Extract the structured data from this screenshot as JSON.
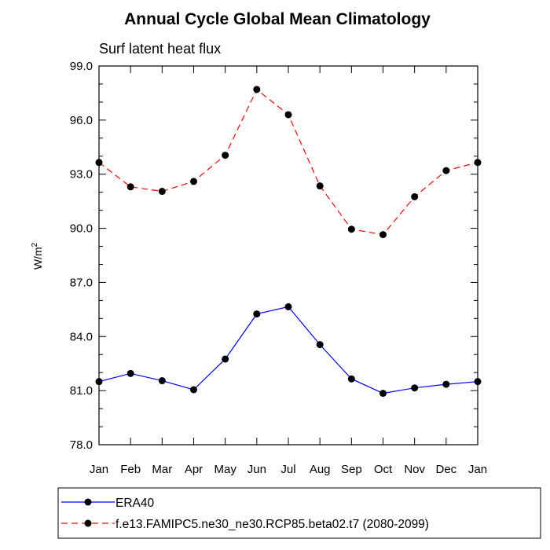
{
  "chart_data": {
    "type": "line",
    "title": "Annual Cycle Global Mean Climatology",
    "subtitle": "Surf latent heat flux",
    "ylabel": "W/m",
    "ylabel_sup": "2",
    "ylim": [
      78.0,
      99.0
    ],
    "yticks": [
      "78.0",
      "81.0",
      "84.0",
      "87.0",
      "90.0",
      "93.0",
      "96.0",
      "99.0"
    ],
    "categories": [
      "Jan",
      "Feb",
      "Mar",
      "Apr",
      "May",
      "Jun",
      "Jul",
      "Aug",
      "Sep",
      "Oct",
      "Nov",
      "Dec",
      "Jan"
    ],
    "series": [
      {
        "name": "ERA40",
        "color": "#0000ff",
        "dash": "solid",
        "values": [
          81.5,
          81.95,
          81.55,
          81.05,
          82.75,
          85.25,
          85.65,
          83.55,
          81.65,
          80.85,
          81.15,
          81.35,
          81.5
        ]
      },
      {
        "name": "f.e13.FAMIPC5.ne30_ne30.RCP85.beta02.t7 (2080-2099)",
        "color": "#ff0000",
        "dash": "dashed",
        "values": [
          93.65,
          92.3,
          92.05,
          92.6,
          94.05,
          97.7,
          96.3,
          92.35,
          89.95,
          89.65,
          91.75,
          93.2,
          93.65
        ]
      }
    ],
    "grid": false,
    "legend_position": "bottom"
  }
}
